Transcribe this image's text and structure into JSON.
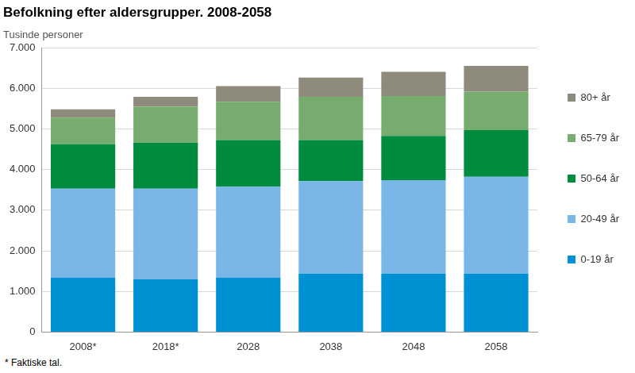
{
  "chart_data": {
    "type": "bar",
    "title": "Befolkning efter aldersgrupper. 2008-2058",
    "y_label": "Tusinde personer",
    "footnote": "* Faktiske tal.",
    "categories": [
      "2008*",
      "2018*",
      "2028",
      "2038",
      "2048",
      "2058"
    ],
    "series": [
      {
        "name": "0-19 år",
        "color": "#0090d4",
        "values": [
          1335,
          1295,
          1335,
          1440,
          1440,
          1440
        ]
      },
      {
        "name": "20-49 år",
        "color": "#7ab6e6",
        "values": [
          2195,
          2235,
          2240,
          2275,
          2300,
          2380
        ]
      },
      {
        "name": "50-64 år",
        "color": "#008b3e",
        "values": [
          1090,
          1130,
          1150,
          1010,
          1085,
          1150
        ]
      },
      {
        "name": "65-79 år",
        "color": "#76ac6e",
        "values": [
          657,
          885,
          940,
          1065,
          985,
          945
        ]
      },
      {
        "name": "80+ år",
        "color": "#8e8b7d",
        "values": [
          203,
          245,
          390,
          475,
          595,
          635
        ]
      }
    ],
    "ylim": [
      0,
      7000
    ],
    "yticks": [
      0,
      {
        "value": 1000,
        "label": "1.000"
      },
      {
        "value": 2000,
        "label": "2.000"
      },
      {
        "value": 3000,
        "label": "3.000"
      },
      {
        "value": 4000,
        "label": "4.000"
      },
      {
        "value": 5000,
        "label": "5.000"
      },
      {
        "value": 6000,
        "label": "6.000"
      },
      {
        "value": 7000,
        "label": "7.000"
      }
    ],
    "stacked": true,
    "grid": true,
    "legend": "right"
  }
}
